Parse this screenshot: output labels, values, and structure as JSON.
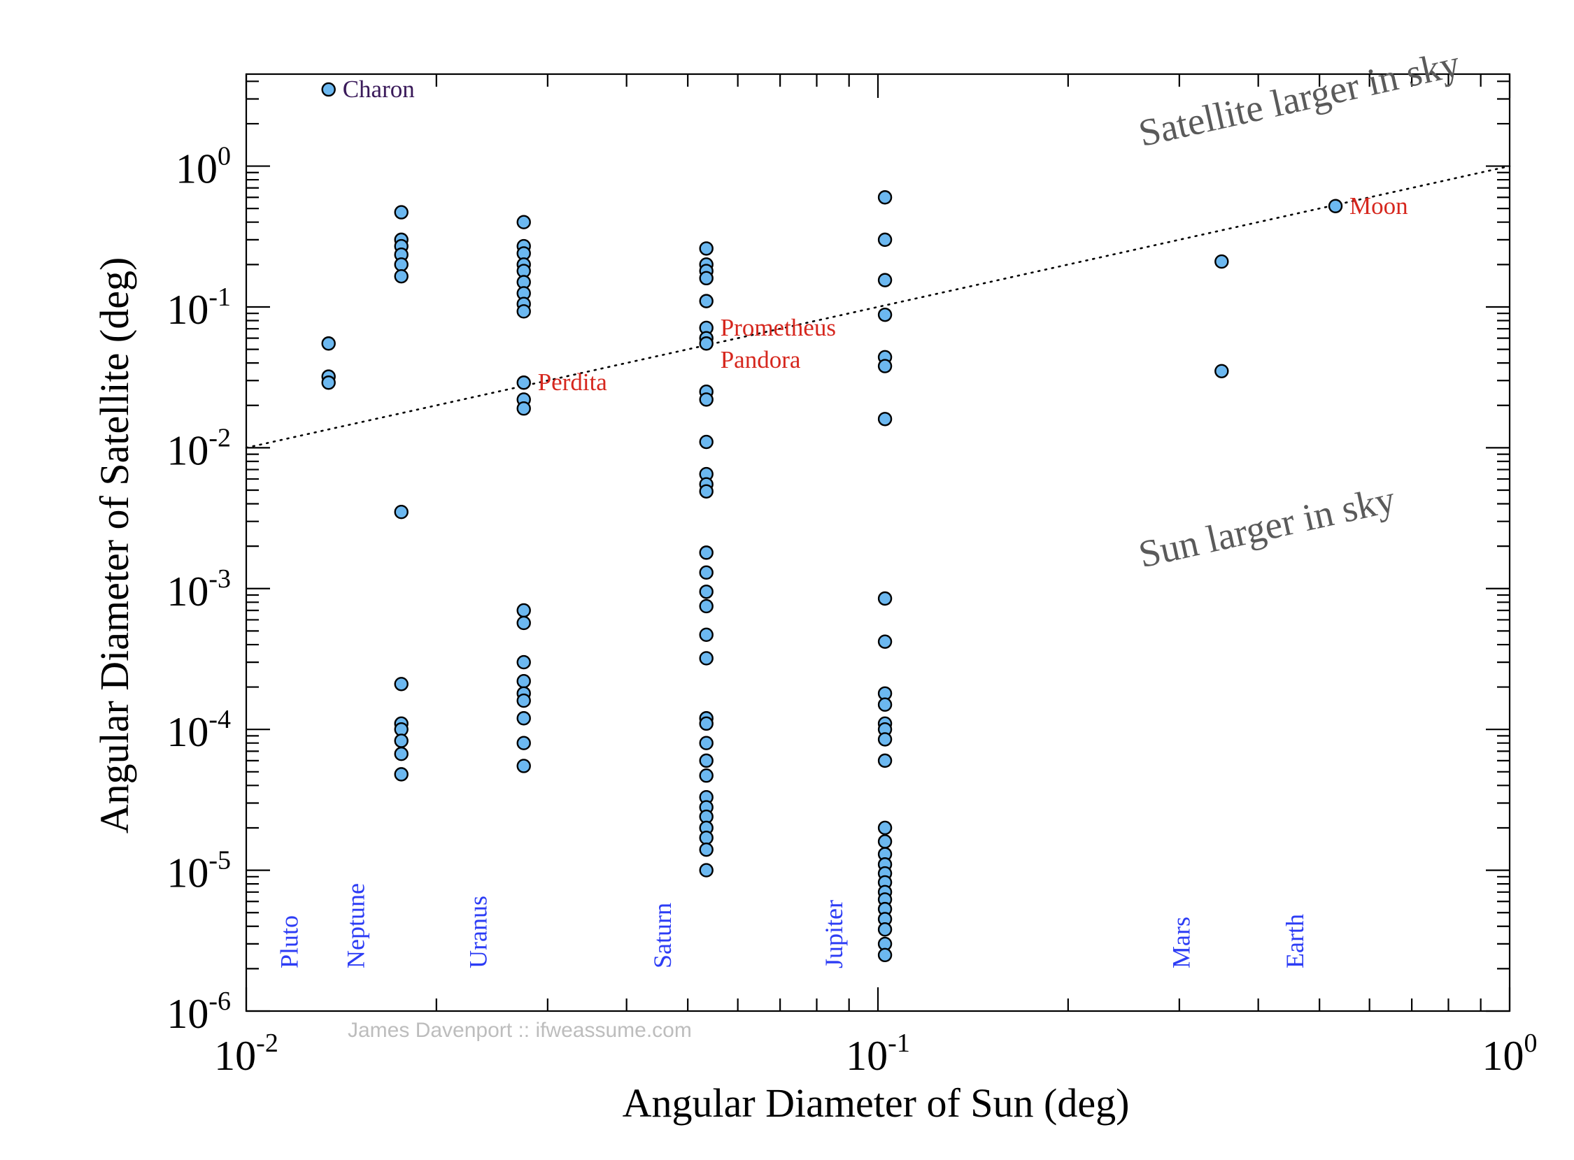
{
  "chart_data": {
    "type": "scatter",
    "title": "",
    "xlabel": "Angular Diameter of Sun (deg)",
    "ylabel": "Angular Diameter of Satellite (deg)",
    "xscale": "log",
    "yscale": "log",
    "xlim": [
      0.01,
      1
    ],
    "ylim": [
      1e-06,
      4.5
    ],
    "x_ticks": [
      {
        "value": 0.01,
        "base": "10",
        "exp": "-2"
      },
      {
        "value": 0.1,
        "base": "10",
        "exp": "-1"
      },
      {
        "value": 1,
        "base": "10",
        "exp": "0"
      }
    ],
    "y_ticks": [
      {
        "value": 1,
        "base": "10",
        "exp": "0"
      },
      {
        "value": 0.1,
        "base": "10",
        "exp": "-1"
      },
      {
        "value": 0.01,
        "base": "10",
        "exp": "-2"
      },
      {
        "value": 0.001,
        "base": "10",
        "exp": "-3"
      },
      {
        "value": 0.0001,
        "base": "10",
        "exp": "-4"
      },
      {
        "value": 1e-05,
        "base": "10",
        "exp": "-5"
      },
      {
        "value": 1e-06,
        "base": "10",
        "exp": "-6"
      }
    ],
    "grid": false,
    "reference_line": {
      "style": "dotted",
      "x": [
        0.01,
        1
      ],
      "y": [
        0.01,
        1
      ]
    },
    "point_color": "#6cb8f0",
    "point_edge_color": "#000000",
    "series": [
      {
        "x_sun": 0.0135,
        "y": [
          3.5,
          0.055,
          0.032,
          0.029
        ]
      },
      {
        "x_sun": 0.0176,
        "y": [
          0.47,
          0.3,
          0.27,
          0.235,
          0.2,
          0.165,
          0.0035,
          0.00021,
          0.00011,
          0.0001,
          8.3e-05,
          6.7e-05,
          4.8e-05
        ]
      },
      {
        "x_sun": 0.0275,
        "y": [
          0.4,
          0.27,
          0.24,
          0.2,
          0.18,
          0.15,
          0.125,
          0.105,
          0.093,
          0.029,
          0.022,
          0.019,
          0.0007,
          0.00057,
          0.0003,
          0.00022,
          0.00018,
          0.00016,
          0.00012,
          8e-05,
          5.5e-05
        ]
      },
      {
        "x_sun": 0.0535,
        "y": [
          0.26,
          0.2,
          0.18,
          0.16,
          0.11,
          0.071,
          0.06,
          0.055,
          0.025,
          0.022,
          0.011,
          0.0065,
          0.0055,
          0.0049,
          0.0018,
          0.0013,
          0.00095,
          0.00075,
          0.00047,
          0.00032,
          0.00012,
          0.00011,
          8e-05,
          6e-05,
          4.7e-05,
          3.3e-05,
          2.8e-05,
          2.4e-05,
          2e-05,
          1.7e-05,
          1.4e-05,
          1e-05
        ]
      },
      {
        "x_sun": 0.1026,
        "y": [
          0.6,
          0.3,
          0.155,
          0.088,
          0.044,
          0.038,
          0.016,
          0.00085,
          0.00042,
          0.00018,
          0.00015,
          0.00011,
          0.0001,
          8.5e-05,
          6e-05,
          2e-05,
          1.6e-05,
          1.3e-05,
          1.1e-05,
          9.5e-06,
          8.2e-06,
          7e-06,
          6.2e-06,
          5.3e-06,
          4.5e-06,
          3.8e-06,
          3e-06,
          2.5e-06
        ]
      },
      {
        "x_sun": 0.35,
        "y": [
          0.21,
          0.035
        ]
      },
      {
        "x_sun": 0.53,
        "y": [
          0.52
        ]
      }
    ],
    "annotations": [
      {
        "text": "Charon",
        "x": 0.0135,
        "y": 3.5,
        "color": "#3a1a5a"
      },
      {
        "text": "Perdita",
        "x": 0.0275,
        "y": 0.029,
        "color": "#d6271e"
      },
      {
        "text": "Prometheus",
        "x": 0.0535,
        "y": 0.071,
        "color": "#d6271e"
      },
      {
        "text": "Pandora",
        "x": 0.0535,
        "y": 0.042,
        "color": "#d6271e"
      },
      {
        "text": "Moon",
        "x": 0.53,
        "y": 0.52,
        "color": "#d6271e"
      }
    ],
    "planet_labels": [
      {
        "text": "Pluto",
        "x": 0.0117
      },
      {
        "text": "Neptune",
        "x": 0.0149
      },
      {
        "text": "Uranus",
        "x": 0.0233
      },
      {
        "text": "Saturn",
        "x": 0.0456
      },
      {
        "text": "Jupiter",
        "x": 0.0852
      },
      {
        "text": "Mars",
        "x": 0.302
      },
      {
        "text": "Earth",
        "x": 0.457
      }
    ],
    "planet_label_color": "#2c3cf5",
    "regions": [
      {
        "text": "Satellite larger in sky",
        "x": 0.262,
        "y": 1.38
      },
      {
        "text": "Sun larger in sky",
        "x": 0.262,
        "y": 0.00141
      }
    ],
    "region_color": "#5a5a5a",
    "credit": "James Davenport :: ifweassume.com"
  }
}
